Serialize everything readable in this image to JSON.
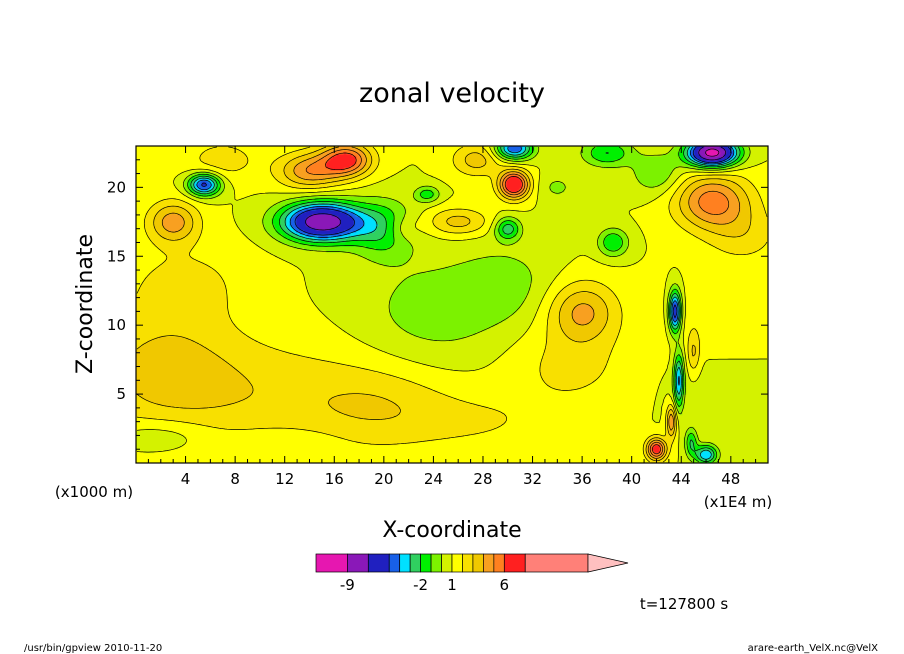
{
  "chart_data": {
    "type": "heatmap",
    "title": "zonal velocity",
    "xlabel": "X-coordinate",
    "ylabel": "Z-coordinate",
    "x_unit_left": "(x1000 m)",
    "x_unit_right": "(x1E4 m)",
    "xlim": [
      0,
      51
    ],
    "ylim": [
      0,
      23
    ],
    "x_ticks": [
      4,
      8,
      12,
      16,
      20,
      24,
      28,
      32,
      36,
      40,
      44,
      48
    ],
    "y_ticks": [
      5,
      10,
      15,
      20
    ],
    "background_value": 1.0,
    "blobs": [
      {
        "x": 2,
        "z": 7,
        "amp": 2.0,
        "sx": 6,
        "sz": 4
      },
      {
        "x": 10,
        "z": 5,
        "amp": 1.6,
        "sx": 10,
        "sz": 4
      },
      {
        "x": 20,
        "z": 4,
        "amp": 1.5,
        "sx": 6,
        "sz": 3
      },
      {
        "x": 28,
        "z": 3,
        "amp": 0.9,
        "sx": 6,
        "sz": 2
      },
      {
        "x": 35,
        "z": 7,
        "amp": 1.3,
        "sx": 5,
        "sz": 3
      },
      {
        "x": 4,
        "z": 13,
        "amp": 1.3,
        "sx": 5,
        "sz": 3
      },
      {
        "x": 2,
        "z": 2,
        "amp": -1.2,
        "sx": 4,
        "sz": 1.2
      },
      {
        "x": 12,
        "z": 1.5,
        "amp": -0.8,
        "sx": 4,
        "sz": 1
      },
      {
        "x": 24,
        "z": 11,
        "amp": -1.5,
        "sx": 6,
        "sz": 4
      },
      {
        "x": 30,
        "z": 13,
        "amp": -1.2,
        "sx": 4,
        "sz": 3
      },
      {
        "x": 36,
        "z": 11,
        "amp": 3.2,
        "sx": 2.8,
        "sz": 2.2
      },
      {
        "x": 46,
        "z": 10,
        "amp": 0.6,
        "sx": 4,
        "sz": 3
      },
      {
        "x": 46,
        "z": 6,
        "amp": -0.4,
        "sx": 4,
        "sz": 3
      },
      {
        "x": 15,
        "z": 17.5,
        "amp": -9.5,
        "sx": 3.2,
        "sz": 1.4
      },
      {
        "x": 20,
        "z": 17,
        "amp": -3.0,
        "sx": 2.5,
        "sz": 2
      },
      {
        "x": 5.5,
        "z": 20.2,
        "amp": -6.5,
        "sx": 1.3,
        "sz": 0.8
      },
      {
        "x": 3,
        "z": 17.5,
        "amp": 3.5,
        "sx": 2,
        "sz": 1.5
      },
      {
        "x": 7,
        "z": 22,
        "amp": 1.5,
        "sx": 3,
        "sz": 1.5
      },
      {
        "x": 14,
        "z": 21.2,
        "amp": 3.8,
        "sx": 2.5,
        "sz": 1.3
      },
      {
        "x": 17,
        "z": 22,
        "amp": 5.5,
        "sx": 2,
        "sz": 1.2
      },
      {
        "x": 23.5,
        "z": 19.5,
        "amp": -2.5,
        "sx": 1,
        "sz": 0.6
      },
      {
        "x": 27.5,
        "z": 22,
        "amp": 2.5,
        "sx": 2,
        "sz": 1.2
      },
      {
        "x": 30.5,
        "z": 20.2,
        "amp": 7.0,
        "sx": 1.2,
        "sz": 1
      },
      {
        "x": 30,
        "z": 17,
        "amp": -3.5,
        "sx": 1,
        "sz": 0.8
      },
      {
        "x": 26,
        "z": 17.5,
        "amp": 2.5,
        "sx": 2.5,
        "sz": 1
      },
      {
        "x": 21.5,
        "z": 17,
        "amp": 1.5,
        "sx": 1.5,
        "sz": 1
      },
      {
        "x": 30.5,
        "z": 22.8,
        "amp": -6.0,
        "sx": 1.5,
        "sz": 0.8
      },
      {
        "x": 38,
        "z": 22.5,
        "amp": -3.0,
        "sx": 2,
        "sz": 1
      },
      {
        "x": 46.5,
        "z": 22.5,
        "amp": -11.0,
        "sx": 2,
        "sz": 1
      },
      {
        "x": 42,
        "z": 21,
        "amp": -2.0,
        "sx": 2,
        "sz": 1.5
      },
      {
        "x": 46.5,
        "z": 19,
        "amp": 4.5,
        "sx": 3,
        "sz": 2
      },
      {
        "x": 49,
        "z": 16.5,
        "amp": 1.5,
        "sx": 3,
        "sz": 2
      },
      {
        "x": 38.5,
        "z": 16,
        "amp": -3.0,
        "sx": 1.2,
        "sz": 1
      },
      {
        "x": 34,
        "z": 20,
        "amp": -1.2,
        "sx": 1.5,
        "sz": 1
      },
      {
        "x": 43.5,
        "z": 11,
        "amp": -7.0,
        "sx": 0.5,
        "sz": 1.5
      },
      {
        "x": 43.8,
        "z": 6,
        "amp": -5.0,
        "sx": 0.4,
        "sz": 2
      },
      {
        "x": 43.2,
        "z": 3,
        "amp": 4.0,
        "sx": 0.4,
        "sz": 1.2
      },
      {
        "x": 42,
        "z": 1,
        "amp": 6.0,
        "sx": 0.8,
        "sz": 0.8
      },
      {
        "x": 44.8,
        "z": 1.5,
        "amp": -3.0,
        "sx": 0.5,
        "sz": 1
      },
      {
        "x": 46,
        "z": 0.6,
        "amp": -5.0,
        "sx": 0.9,
        "sz": 0.7
      },
      {
        "x": 45,
        "z": 8,
        "amp": 2.0,
        "sx": 0.5,
        "sz": 1.5
      }
    ],
    "colorbar": {
      "labels": [
        "-9",
        "-2",
        "1",
        "6"
      ],
      "levels": [
        -12,
        -9,
        -7,
        -5,
        -4,
        -3,
        -2,
        -1,
        0,
        1,
        2,
        3,
        4,
        5,
        6,
        8,
        14
      ],
      "colors": [
        "#e617b0",
        "#8a18b8",
        "#2020c0",
        "#1860e8",
        "#00e0ff",
        "#30d060",
        "#00f000",
        "#7cf200",
        "#d4f200",
        "#ffff00",
        "#f8e000",
        "#f0c800",
        "#f8a020",
        "#ff8020",
        "#ff2020",
        "#ff8078"
      ],
      "extend_color": "#ffc0c0"
    },
    "annotation": "t=127800 s"
  },
  "footer": {
    "left": "/usr/bin/gpview  2010-11-20",
    "right": "arare-earth_VelX.nc@VelX"
  }
}
